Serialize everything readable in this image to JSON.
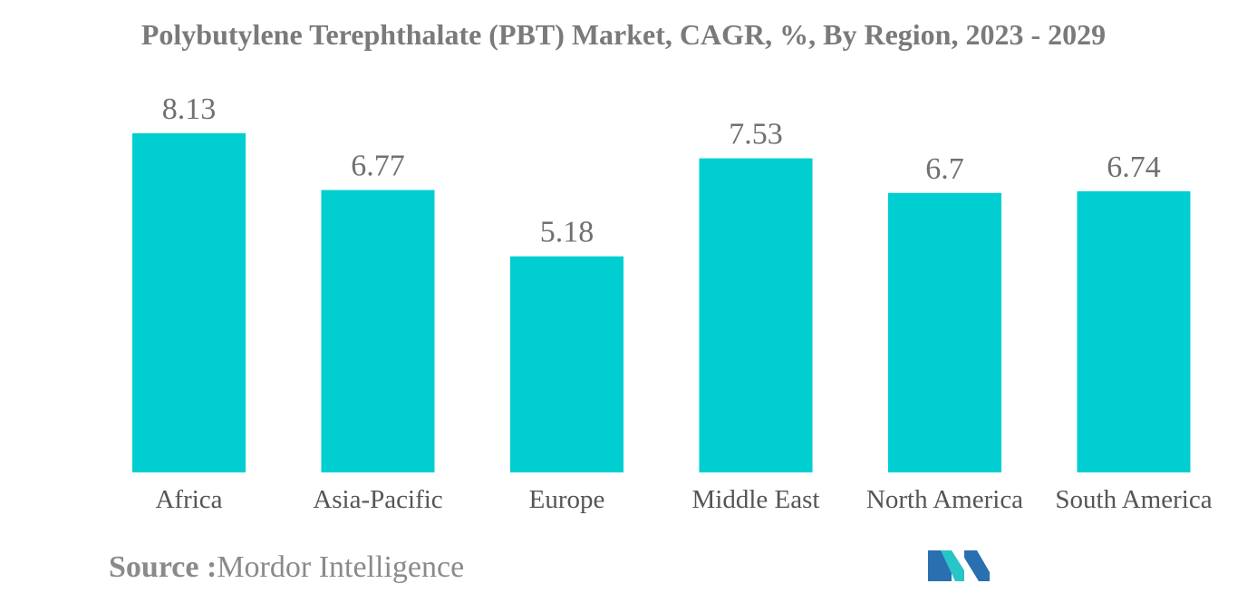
{
  "chart_data": {
    "type": "bar",
    "title": "Polybutylene Terephthalate (PBT) Market, CAGR, %, By Region, 2023 - 2029",
    "categories": [
      "Africa",
      "Asia-Pacific",
      "Europe",
      "Middle East",
      "North America",
      "South America"
    ],
    "values": [
      8.13,
      6.77,
      5.18,
      7.53,
      6.7,
      6.74
    ],
    "value_labels": [
      "8.13",
      "6.77",
      "5.18",
      "7.53",
      "6.7",
      "6.74"
    ],
    "xlabel": "",
    "ylabel": "",
    "ylim": [
      0,
      8.13
    ],
    "grid": false,
    "legend": "none",
    "bar_color": "#00ced1",
    "label_color": "#707070"
  },
  "source": {
    "label": "Source :",
    "text": "Mordor Intelligence"
  },
  "logo": {
    "icon": "mordor-intelligence-logo-icon",
    "colors": [
      "#2a6fb0",
      "#27c4c8"
    ]
  }
}
